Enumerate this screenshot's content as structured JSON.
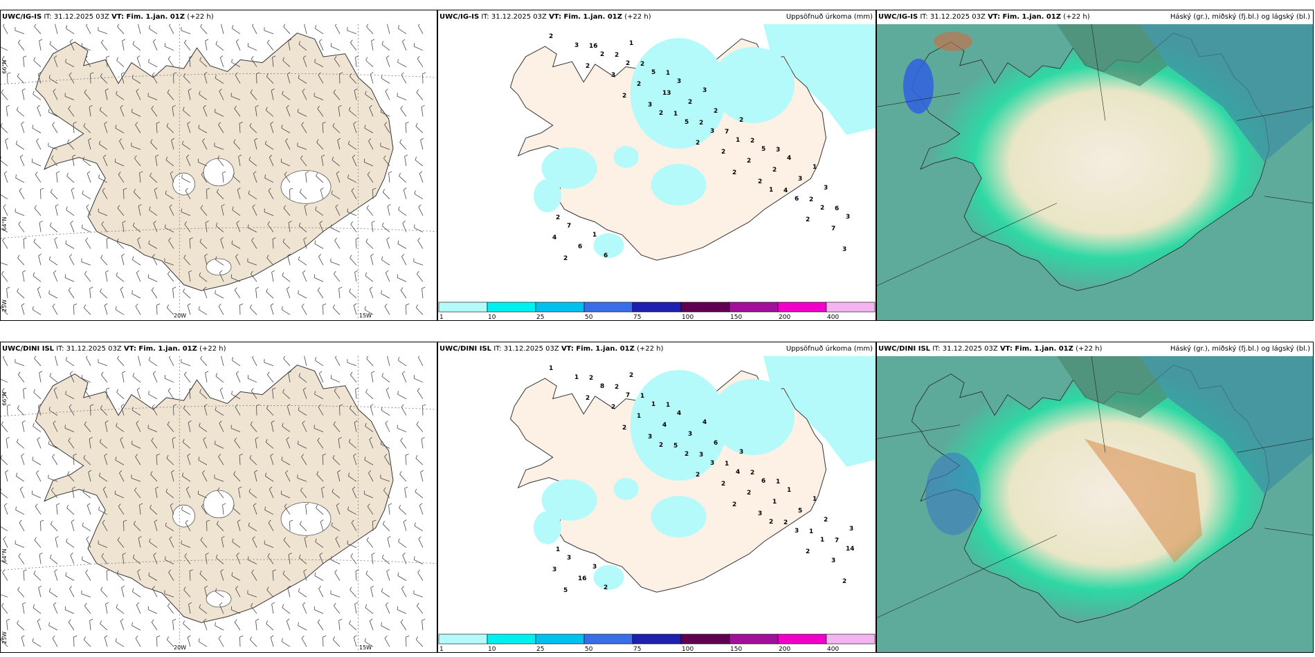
{
  "rows": [
    {
      "model": "UWC/IG-IS",
      "wind_it": "IT: 31.12.2025 03Z",
      "precip_it": "IT: 31.12.2025 03Z",
      "cloud_it": "IT: 31.12.2025 03Z",
      "vt": "VT: Fim. 1.jan. 01Z",
      "lead": "(+22 h)",
      "precip_title": "Uppsöfnuð úrkoma (mm)",
      "cloud_title": "Háský (gr.), miðský (fj.bl.) og lágský (bl.)"
    },
    {
      "model": "UWC/DINI ISL",
      "wind_it": "IT: 31.12.2025 03Z",
      "precip_it": "IT: 31.12.2025 03Z",
      "cloud_it": "IT: 31.12.2025 03Z",
      "vt": "VT: Fim. 1.jan. 01Z",
      "lead": "(+22 h)",
      "precip_title": "Uppsöfnuð úrkoma (mm)",
      "cloud_title": "Háský (gr.), miðský (fj.bl.) og lágský (bl.)"
    }
  ],
  "grid_labels": {
    "lat66": "66°N",
    "lat64": "64°N",
    "lon20": "20W",
    "lon15": "15W",
    "lon25": "25W"
  },
  "colorbar": {
    "labels": [
      "1",
      "10",
      "25",
      "50",
      "75",
      "100",
      "150",
      "200",
      "400"
    ],
    "colors": [
      "#b4fafa",
      "#00f0f0",
      "#00c0ee",
      "#3a6ee6",
      "#2020b0",
      "#600050",
      "#a0109a",
      "#f000c8",
      "#f4b4f0"
    ]
  },
  "precip_values_top": [
    "2",
    "2",
    "2",
    "2",
    "2",
    "2",
    "1",
    "2",
    "3",
    "3",
    "3",
    "3",
    "5",
    "2",
    "2",
    "6",
    "7",
    "2",
    "2",
    "2",
    "1",
    "3",
    "2",
    "4",
    "2",
    "4",
    "16",
    "2",
    "13",
    "2",
    "1",
    "2",
    "2",
    "3",
    "6",
    "2",
    "5",
    "2",
    "7",
    "5",
    "3",
    "6",
    "7",
    "6",
    "2",
    "3",
    "2",
    "2",
    "4",
    "3",
    "2",
    "1",
    "1",
    "1",
    "3",
    "2",
    "3",
    "1"
  ],
  "precip_values_bottom": [
    "1",
    "2",
    "2",
    "2",
    "2",
    "2",
    "2",
    "2",
    "2",
    "1",
    "2",
    "3",
    "2",
    "2",
    "3",
    "3",
    "3",
    "5",
    "8",
    "1",
    "5",
    "3",
    "2",
    "2",
    "1",
    "3",
    "2",
    "7",
    "4",
    "3",
    "4",
    "1",
    "1",
    "14",
    "16",
    "2",
    "1",
    "3",
    "1",
    "6",
    "5",
    "7",
    "3",
    "2",
    "1",
    "4",
    "6",
    "2",
    "1",
    "2",
    "1",
    "3",
    "2",
    "1",
    "4",
    "3",
    "1",
    "1",
    "3"
  ]
}
